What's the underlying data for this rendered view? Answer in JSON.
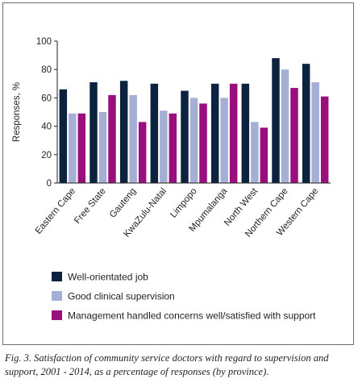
{
  "chart_data": {
    "type": "bar",
    "categories": [
      "Eastern Cape",
      "Free State",
      "Gauteng",
      "KwaZulu-Natal",
      "Limpopo",
      "Mpumalanga",
      "North West",
      "Northern Cape",
      "Western Cape"
    ],
    "series": [
      {
        "name": "Well-orientated job",
        "color": "#0c2340",
        "values": [
          66,
          71,
          72,
          70,
          65,
          70,
          70,
          88,
          84
        ]
      },
      {
        "name": "Good clinical supervision",
        "color": "#a5afd4",
        "values": [
          49,
          50,
          62,
          51,
          60,
          60,
          43,
          80,
          71
        ]
      },
      {
        "name": "Management handled concerns well/satisfied with support",
        "color": "#9a0f7e",
        "values": [
          49,
          62,
          43,
          49,
          56,
          70,
          39,
          67,
          61
        ]
      }
    ],
    "ylabel": "Responses, %",
    "xlabel": "",
    "ylim": [
      0,
      100
    ],
    "yticks": [
      0,
      20,
      40,
      60,
      80,
      100
    ],
    "grid": false,
    "legend_position": "bottom"
  },
  "caption": "Fig. 3. Satisfaction of community service doctors with regard to supervision and support, 2001 - 2014, as a percentage of responses (by province)."
}
